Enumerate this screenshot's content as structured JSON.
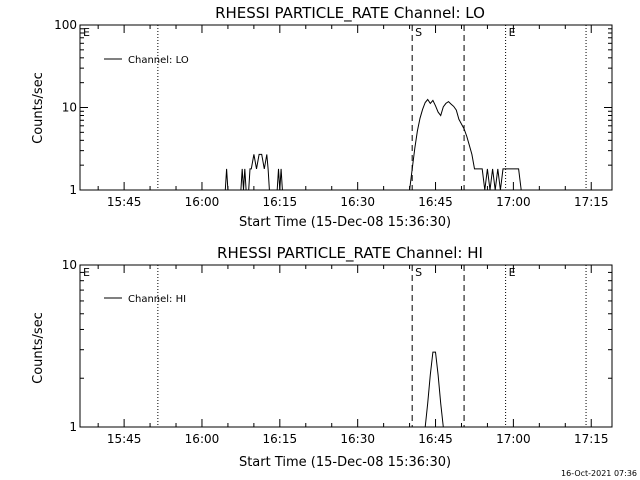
{
  "timestamp": "16-Oct-2021 07:36",
  "chart_data": [
    {
      "type": "line",
      "title": "RHESSI PARTICLE_RATE Channel: LO",
      "xlabel": "Start Time (15-Dec-08 15:36:30)",
      "ylabel": "Counts/sec",
      "yscale": "log",
      "ylim": [
        1,
        100
      ],
      "y_ticks": [
        "1",
        "10",
        "100"
      ],
      "xlim": [
        "15:36:30",
        "17:19:00"
      ],
      "x_ticks": [
        "15:45",
        "16:00",
        "16:15",
        "16:30",
        "16:45",
        "17:00",
        "17:15"
      ],
      "legend": {
        "position": "top-left",
        "entries": [
          "Channel: LO"
        ]
      },
      "markers": [
        {
          "label": "E",
          "time": "15:36:30",
          "style": "none"
        },
        {
          "label": "",
          "time": "15:51:30",
          "style": "dotted"
        },
        {
          "label": "S",
          "time": "16:40:30",
          "style": "dashed"
        },
        {
          "label": "",
          "time": "16:50:30",
          "style": "dashed"
        },
        {
          "label": "E",
          "time": "16:58:30",
          "style": "dotted"
        },
        {
          "label": "",
          "time": "17:14:00",
          "style": "dotted"
        }
      ],
      "series": [
        {
          "name": "Channel: LO",
          "points": [
            [
              "16:04:30",
              1
            ],
            [
              "16:04:45",
              1.8
            ],
            [
              "16:05:00",
              1
            ],
            [
              "16:07:30",
              1
            ],
            [
              "16:07:45",
              1.8
            ],
            [
              "16:08:00",
              1
            ],
            [
              "16:08:15",
              1.8
            ],
            [
              "16:08:30",
              1
            ],
            [
              "16:09:00",
              1
            ],
            [
              "16:09:15",
              1.8
            ],
            [
              "16:09:30",
              1.8
            ],
            [
              "16:10:00",
              2.7
            ],
            [
              "16:10:30",
              1.8
            ],
            [
              "16:11:00",
              2.7
            ],
            [
              "16:11:30",
              2.7
            ],
            [
              "16:12:00",
              1.8
            ],
            [
              "16:12:30",
              2.7
            ],
            [
              "16:12:45",
              1.8
            ],
            [
              "16:13:00",
              1
            ],
            [
              "16:14:30",
              1
            ],
            [
              "16:14:45",
              1.8
            ],
            [
              "16:15:00",
              1
            ],
            [
              "16:15:15",
              1.8
            ],
            [
              "16:15:30",
              1
            ],
            [
              "16:40:00",
              1
            ],
            [
              "16:40:30",
              1.8
            ],
            [
              "16:41:00",
              3.2
            ],
            [
              "16:41:30",
              5.2
            ],
            [
              "16:42:00",
              7.4
            ],
            [
              "16:42:30",
              9.5
            ],
            [
              "16:43:00",
              11.5
            ],
            [
              "16:43:30",
              12.5
            ],
            [
              "16:44:00",
              11.2
            ],
            [
              "16:44:30",
              12.2
            ],
            [
              "16:45:00",
              10.5
            ],
            [
              "16:45:30",
              8.8
            ],
            [
              "16:46:00",
              8.0
            ],
            [
              "16:46:30",
              10.2
            ],
            [
              "16:47:00",
              11.2
            ],
            [
              "16:47:30",
              11.8
            ],
            [
              "16:48:00",
              11.0
            ],
            [
              "16:48:30",
              10.3
            ],
            [
              "16:49:00",
              9.3
            ],
            [
              "16:49:30",
              7.2
            ],
            [
              "16:50:00",
              6.3
            ],
            [
              "16:50:30",
              5.5
            ],
            [
              "16:51:00",
              4.5
            ],
            [
              "16:51:30",
              3.5
            ],
            [
              "16:52:00",
              2.7
            ],
            [
              "16:52:30",
              1.8
            ],
            [
              "16:53:00",
              1.8
            ],
            [
              "16:54:00",
              1.8
            ],
            [
              "16:54:30",
              1
            ],
            [
              "16:55:00",
              1.8
            ],
            [
              "16:55:30",
              1
            ],
            [
              "16:56:00",
              1.8
            ],
            [
              "16:56:30",
              1
            ],
            [
              "16:57:00",
              1.8
            ],
            [
              "16:57:30",
              1
            ],
            [
              "16:58:00",
              1.8
            ],
            [
              "16:59:00",
              1.8
            ],
            [
              "17:00:00",
              1.8
            ],
            [
              "17:01:00",
              1.8
            ],
            [
              "17:01:30",
              1
            ]
          ]
        }
      ]
    },
    {
      "type": "line",
      "title": "RHESSI PARTICLE_RATE Channel: HI",
      "xlabel": "Start Time (15-Dec-08 15:36:30)",
      "ylabel": "Counts/sec",
      "yscale": "log",
      "ylim": [
        1,
        10
      ],
      "y_ticks": [
        "1",
        "10"
      ],
      "xlim": [
        "15:36:30",
        "17:19:00"
      ],
      "x_ticks": [
        "15:45",
        "16:00",
        "16:15",
        "16:30",
        "16:45",
        "17:00",
        "17:15"
      ],
      "legend": {
        "position": "top-left",
        "entries": [
          "Channel: HI"
        ]
      },
      "markers": [
        {
          "label": "E",
          "time": "15:36:30",
          "style": "none"
        },
        {
          "label": "",
          "time": "15:51:30",
          "style": "dotted"
        },
        {
          "label": "S",
          "time": "16:40:30",
          "style": "dashed"
        },
        {
          "label": "",
          "time": "16:50:30",
          "style": "dashed"
        },
        {
          "label": "E",
          "time": "16:58:30",
          "style": "dotted"
        },
        {
          "label": "",
          "time": "17:14:00",
          "style": "dotted"
        }
      ],
      "series": [
        {
          "name": "Channel: HI",
          "points": [
            [
              "16:43:00",
              1
            ],
            [
              "16:43:30",
              1.4
            ],
            [
              "16:44:00",
              2.1
            ],
            [
              "16:44:30",
              2.9
            ],
            [
              "16:45:00",
              2.9
            ],
            [
              "16:45:30",
              2.1
            ],
            [
              "16:46:00",
              1.4
            ],
            [
              "16:46:30",
              1
            ]
          ]
        }
      ]
    }
  ]
}
